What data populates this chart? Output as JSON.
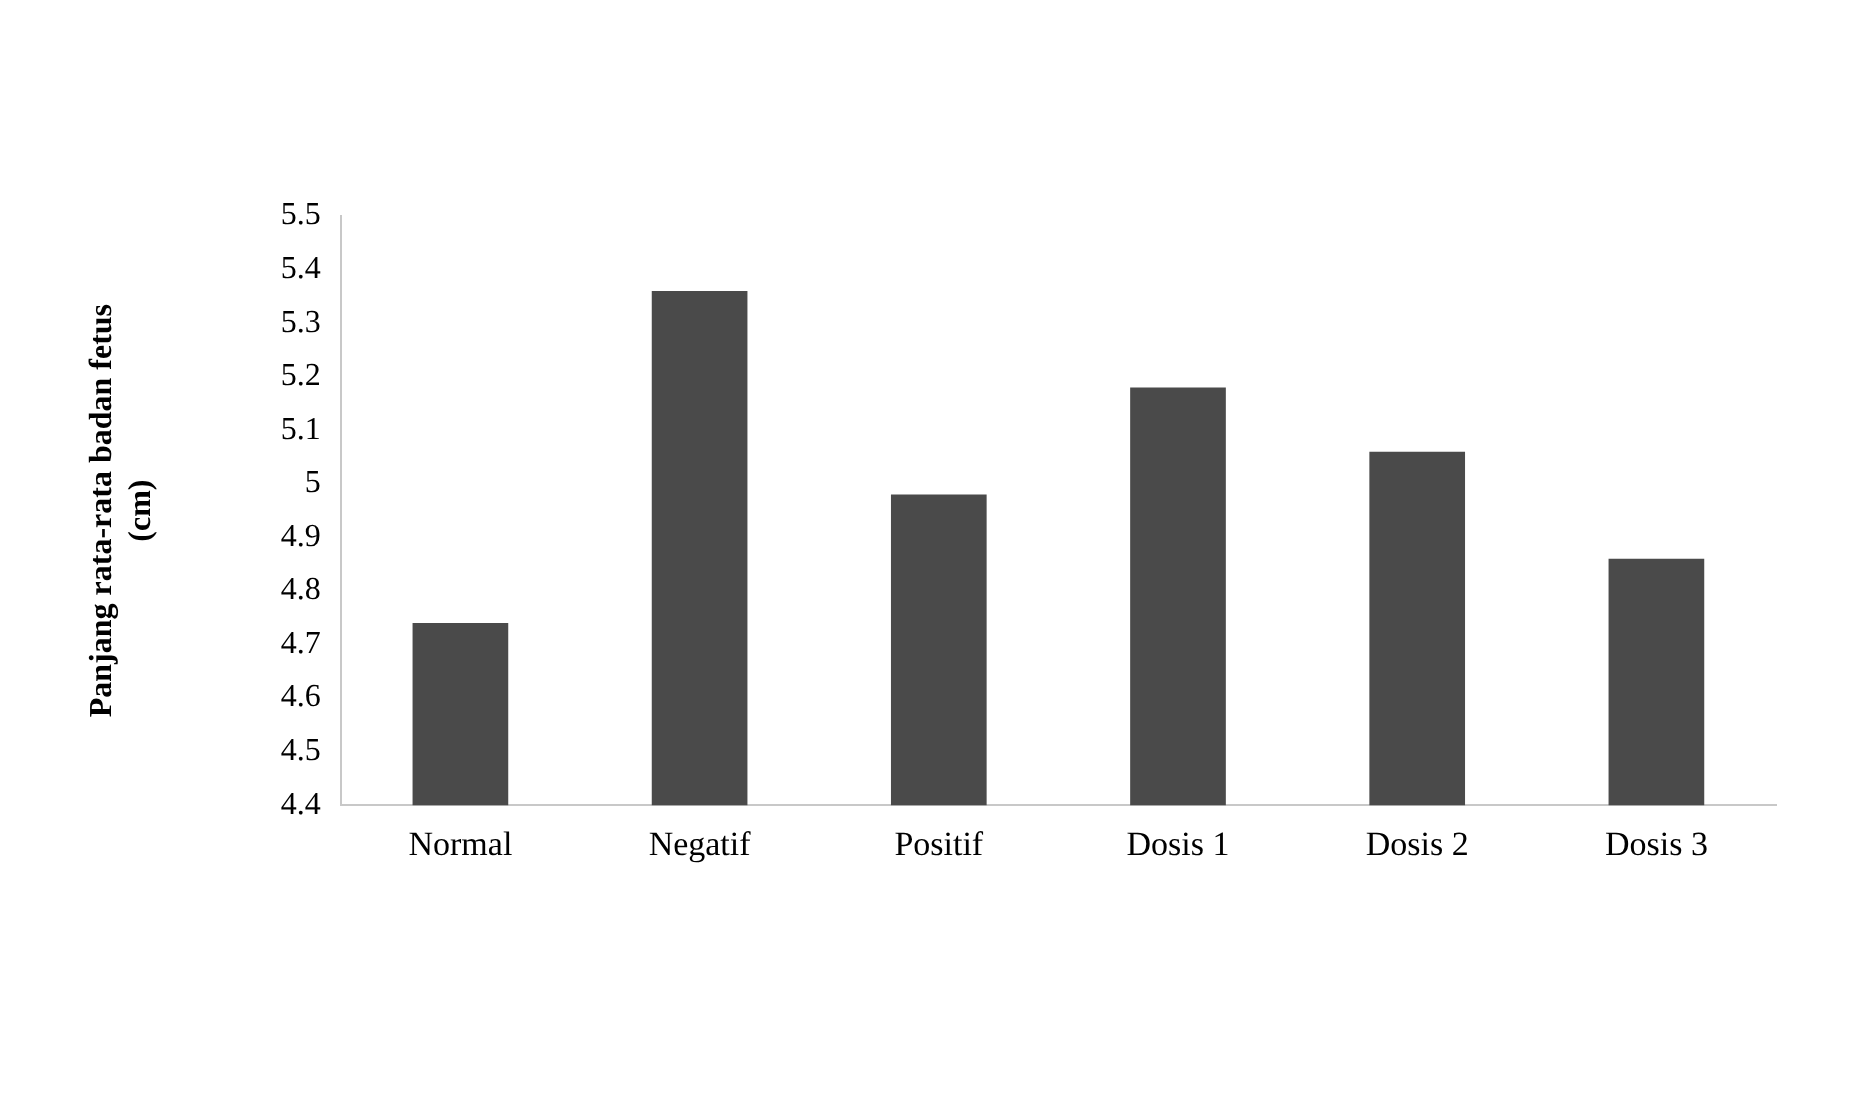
{
  "chart_data": {
    "type": "bar",
    "ylabel": "Panjang rata-rata badan fetus (cm)",
    "categories": [
      "Normal",
      "Negatif",
      "Positif",
      "Dosis 1",
      "Dosis 2",
      "Dosis 3"
    ],
    "values": [
      4.74,
      5.36,
      4.98,
      5.18,
      5.06,
      4.86
    ],
    "color": "#4a4a4a",
    "ylim": [
      4.4,
      5.5
    ],
    "yticks": [
      4.4,
      4.5,
      4.6,
      4.7,
      4.8,
      4.9,
      5,
      5.1,
      5.2,
      5.3,
      5.4,
      5.5
    ],
    "grid": false,
    "legend": false
  }
}
